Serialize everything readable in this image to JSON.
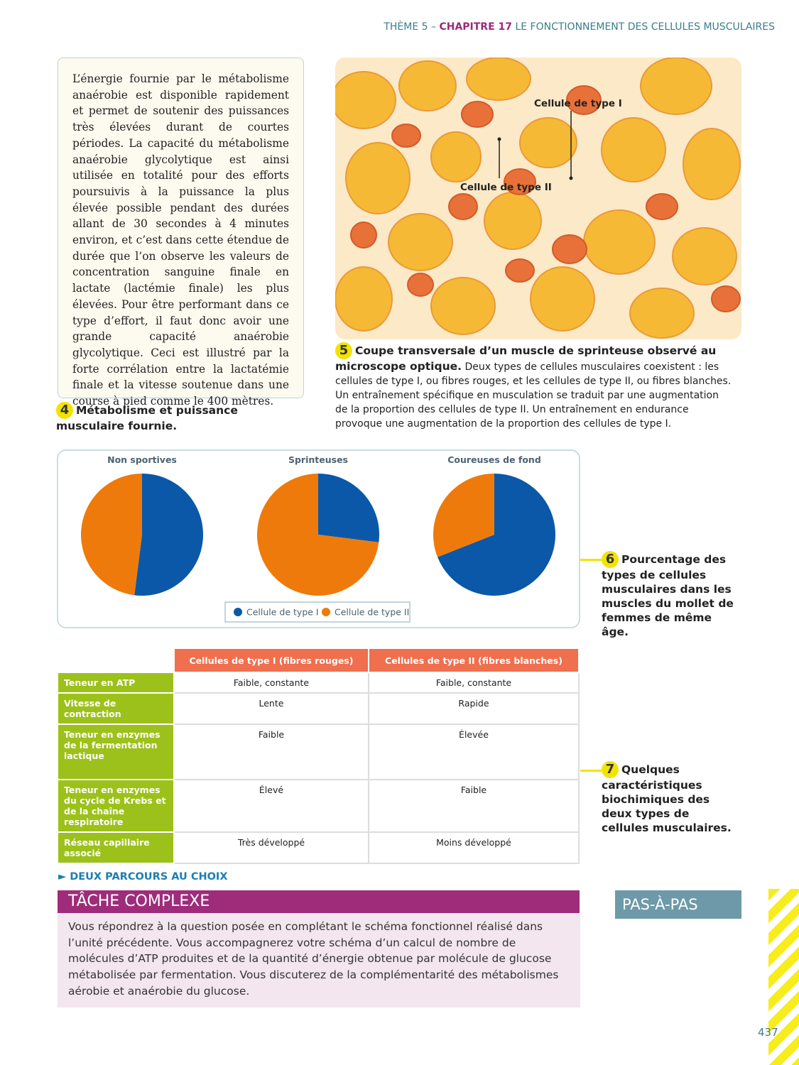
{
  "header": {
    "theme": "THÈME 5 –",
    "chapter": "CHAPITRE 17",
    "title": "LE FONCTIONNEMENT DES CELLULES MUSCULAIRES"
  },
  "doc4": {
    "text": "L’énergie fournie par le métabolisme anaérobie est disponible rapidement et permet de soutenir des puissances très élevées durant de courtes périodes. La capacité du métabolisme anaérobie glycolytique est ainsi utilisée en totalité pour des efforts poursuivis à la puissance la plus élevée possible pendant des durées allant de 30 secondes à 4 minutes environ, et c’est dans cette étendue de durée que l’on observe les valeurs de concentration sanguine finale en lactate (lactémie finale) les plus élevées. Pour être performant dans ce type d’effort, il faut donc avoir une grande capacité anaérobie glycolytique. Ceci est illustré par la forte corrélation entre la lactatémie finale et la vitesse soutenue dans une course à pied comme le 400 mètres.",
    "number": "4",
    "caption": "Métabolisme et puissance musculaire fournie."
  },
  "doc5": {
    "labels": [
      "Cellule de type I",
      "Cellule de type II"
    ],
    "number": "5",
    "caption_bold": "Coupe transversale d’un muscle de sprinteuse observé au microscope optique.",
    "caption": "Deux types de cellules musculaires coexistent : les cellules de type I, ou fibres rouges, et les cellules de type II, ou fibres blanches. Un entraînement spécifique en musculation se traduit par une augmentation de la proportion des cellules de type II. Un entraînement en endurance provoque une augmentation de la proportion des cellules de type I."
  },
  "chart_data": {
    "type": "pie",
    "categories": [
      "Cellule de type I",
      "Cellule de type II"
    ],
    "colors": [
      "#0b58a8",
      "#ee7a0c"
    ],
    "series": [
      {
        "name": "Non sportives",
        "values": [
          52,
          48
        ]
      },
      {
        "name": "Sprinteuses",
        "values": [
          27,
          73
        ]
      },
      {
        "name": "Coureuses de fond",
        "values": [
          69,
          31
        ]
      }
    ]
  },
  "doc6": {
    "number": "6",
    "caption": "Pourcentage des types de cellules musculaires dans les muscles du mollet de femmes de même âge."
  },
  "table": {
    "columns": [
      "Cellules de type I (fibres rouges)",
      "Cellules de type II (fibres blanches)"
    ],
    "rows": [
      [
        "Teneur en ATP",
        "Faible, constante",
        "Faible, constante"
      ],
      [
        "Vitesse de contraction",
        "Lente",
        "Rapide"
      ],
      [
        "Teneur en enzymes de la fermentation lactique",
        "Faible",
        "Élevée"
      ],
      [
        "Teneur en enzymes du cycle de Krebs et de la chaîne respiratoire",
        "Élevé",
        "Faible"
      ],
      [
        "Réseau capillaire associé",
        "Très développé",
        "Moins développé"
      ]
    ]
  },
  "doc7": {
    "number": "7",
    "caption": "Quelques caractéristiques biochimiques des deux types de cellules musculaires."
  },
  "task": {
    "kicker": "DEUX PARCOURS AU CHOIX",
    "title": "TÂCHE COMPLEXE",
    "text": "Vous répondrez à la question posée en complétant le schéma fonctionnel réalisé dans l’unité précédente. Vous accompagnerez votre schéma d’un calcul de nombre de molécules d’ATP produites et de la quantité d’énergie obtenue par molécule de glucose métabolisée par fermentation. Vous discuterez de la complémentarité des métabolismes aérobie et anaérobie du glucose.",
    "button": "PAS-À-PAS"
  },
  "page_number": "437"
}
